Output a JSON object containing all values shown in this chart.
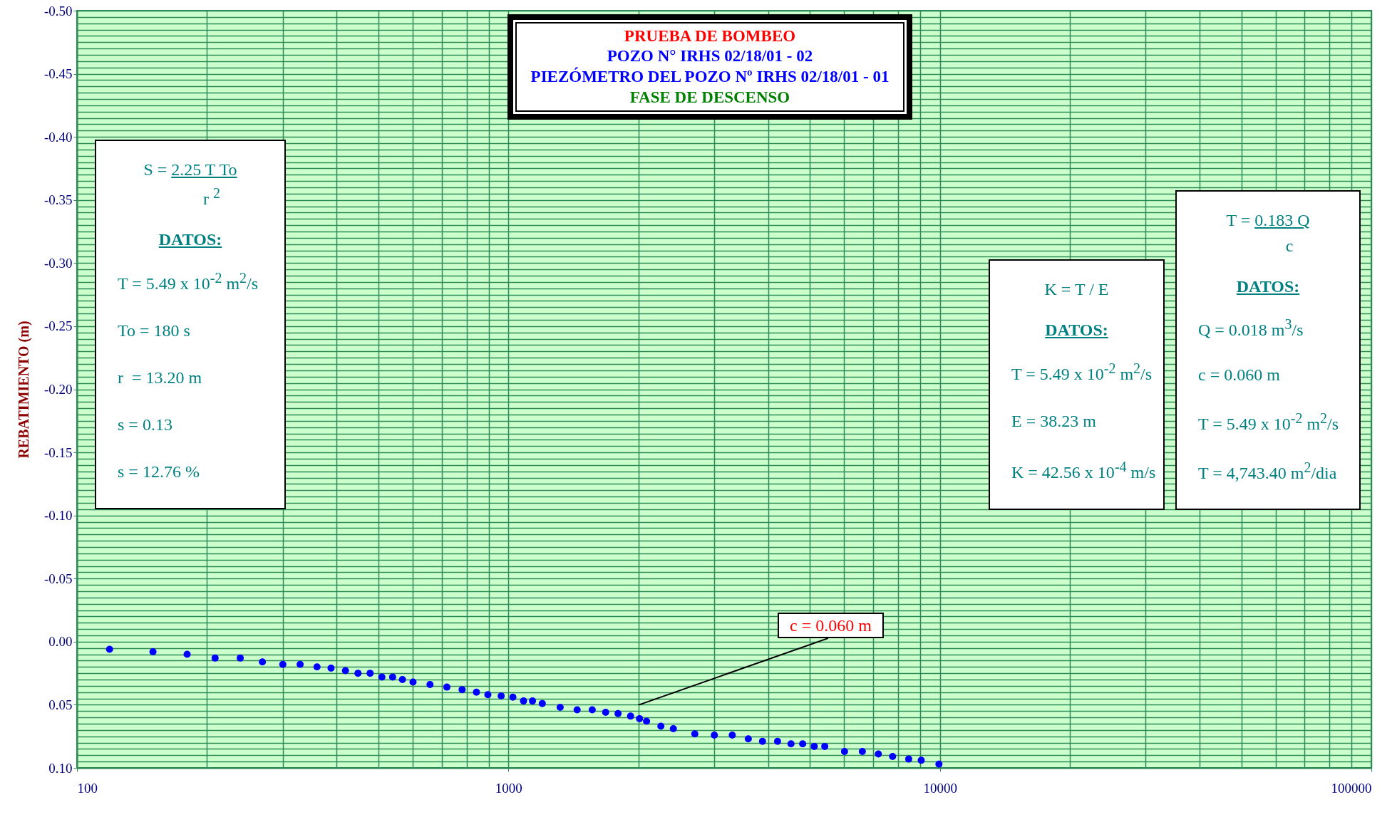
{
  "chart_data": {
    "type": "scatter",
    "title": "PRUEBA DE BOMBEO",
    "subtitle": "POZO N° IRHS 02/18/01 - 02\nPIEZÓMETRO DEL POZO Nº IRHS 02/18/01 - 01\nFASE DE DESCENSO",
    "ylabel": "REBATIMIENTO (m)",
    "log": "x",
    "grid": true,
    "marker": "circle",
    "xlim": [
      100,
      100000
    ],
    "xticks": [
      100,
      1000,
      10000,
      100000
    ],
    "ylim": [
      0.1,
      -0.5
    ],
    "yticks": [
      {
        "value": -0.5,
        "label": "-0.50"
      },
      {
        "value": -0.45,
        "label": "-0.45"
      },
      {
        "value": -0.4,
        "label": "-0.40"
      },
      {
        "value": -0.35,
        "label": "-0.35"
      },
      {
        "value": -0.3,
        "label": "-0.30"
      },
      {
        "value": -0.25,
        "label": "-0.25"
      },
      {
        "value": -0.2,
        "label": "-0.20"
      },
      {
        "value": -0.15,
        "label": "-0.15"
      },
      {
        "value": -0.1,
        "label": "-0.10"
      },
      {
        "value": -0.05,
        "label": "-0.05"
      },
      {
        "value": 0,
        "label": "0.00"
      },
      {
        "value": 0.05,
        "label": "0.05"
      },
      {
        "value": 0.1,
        "label": "0.10"
      }
    ],
    "series": [
      {
        "color": "#0000ff",
        "x": [
          119,
          150,
          180,
          209,
          239,
          269,
          300,
          329,
          360,
          388,
          419,
          448,
          478,
          509,
          539,
          568,
          601,
          658,
          720,
          781,
          843,
          896,
          962,
          1024,
          1084,
          1137,
          1198,
          1318,
          1443,
          1564,
          1680,
          1795,
          1919,
          2013,
          2090,
          2256,
          2411,
          2704,
          3001,
          3302,
          3597,
          3880,
          4205,
          4518,
          4808,
          5114,
          5409,
          6011,
          6611,
          7200,
          7770,
          8466,
          9052,
          9950
        ],
        "values": [
          0.006,
          0.008,
          0.01,
          0.013,
          0.013,
          0.016,
          0.018,
          0.018,
          0.02,
          0.021,
          0.023,
          0.025,
          0.025,
          0.028,
          0.028,
          0.03,
          0.032,
          0.034,
          0.036,
          0.038,
          0.04,
          0.042,
          0.043,
          0.044,
          0.047,
          0.047,
          0.049,
          0.052,
          0.054,
          0.054,
          0.056,
          0.057,
          0.059,
          0.061,
          0.063,
          0.067,
          0.069,
          0.073,
          0.074,
          0.074,
          0.077,
          0.079,
          0.079,
          0.081,
          0.081,
          0.083,
          0.083,
          0.087,
          0.087,
          0.089,
          0.091,
          0.093,
          0.094,
          0.097
        ]
      }
    ],
    "annotations": [
      "S = 2.25 T To\nr $^{2}$\n\nDATOS:\n\nT = 5.49 x 10$^{-2}$ m$^{2}$/s\nTo = 180 s\nr  = 13.20 m\ns = 0.13\ns = 12.76 %",
      "K = T / E\n\nDATOS:\n\nT = 5.49 x 10$^{-2}$ m$^{2}$/s\nE = 38.23 m\nK = 42.56 x 10$^{-4}$ m/s",
      "T = 0.183 Q\nc\n\nDATOS:\n\nQ = 0.018 m$^{3}$/s\nc = 0.060 m\nT = 5.49 x 10$^{-2}$ m$^{2}$/s\nT = 4,743.40 m$^{2}$/dia",
      "c = 0.060 m"
    ]
  }
}
